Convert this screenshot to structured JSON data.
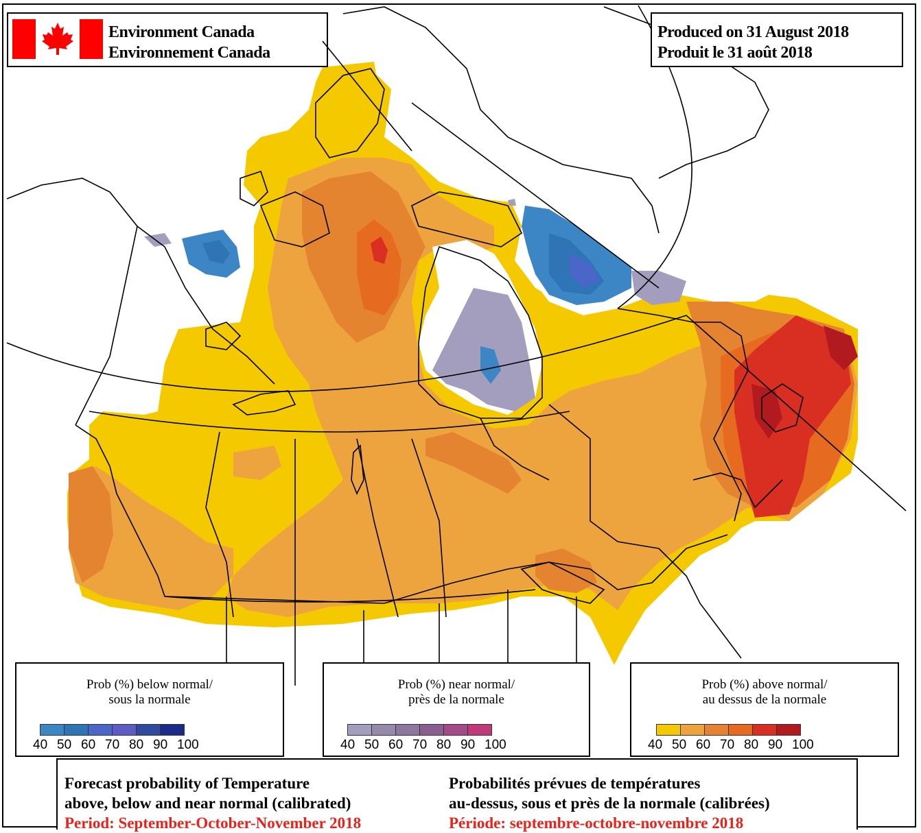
{
  "header": {
    "agency_en": "Environment Canada",
    "agency_fr": "Environnement Canada",
    "produced_en": "Produced on 31 August 2018",
    "produced_fr": "Produit le 31 août 2018"
  },
  "legends": [
    {
      "id": "below",
      "title_en": "Prob (%) below normal/",
      "title_fr": "sous la normale",
      "ticks": [
        "40",
        "50",
        "60",
        "70",
        "80",
        "90",
        "100"
      ],
      "colors": [
        "#3d86c6",
        "#2f74b5",
        "#4a66c9",
        "#5c5cc4",
        "#2f4a9e",
        "#1c2a8a"
      ]
    },
    {
      "id": "near",
      "title_en": "Prob (%) near normal/",
      "title_fr": "près de la normale",
      "ticks": [
        "40",
        "50",
        "60",
        "70",
        "80",
        "90",
        "100"
      ],
      "colors": [
        "#a39ebd",
        "#968aac",
        "#8c779f",
        "#8a5e90",
        "#a24b88",
        "#c03a7a"
      ]
    },
    {
      "id": "above",
      "title_en": "Prob (%) above normal/",
      "title_fr": "au dessus de la normale",
      "ticks": [
        "40",
        "50",
        "60",
        "70",
        "80",
        "90",
        "100"
      ],
      "colors": [
        "#f5c900",
        "#eea43e",
        "#e48430",
        "#e66a1f",
        "#d92e22",
        "#b11b1f"
      ]
    }
  ],
  "footer": {
    "en_line1": "Forecast probability of Temperature",
    "en_line2": "above, below and near normal (calibrated)",
    "en_period": "Period: September-October-November 2018",
    "fr_line1": "Probabilités prévues de températures",
    "fr_line2": "au-dessus, sous et près de la normale (calibrées)",
    "fr_period": "Période: septembre-octobre-novembre 2018"
  },
  "map": {
    "colors": {
      "above_40": "#f5c900",
      "above_50": "#eea43e",
      "above_60": "#e48430",
      "above_70": "#e66a1f",
      "above_80": "#d92e22",
      "above_90": "#b11b1f",
      "near_40": "#a39ebd",
      "below_40": "#3d86c6",
      "below_50": "#2f74b5",
      "below_60": "#4a66c9"
    }
  }
}
